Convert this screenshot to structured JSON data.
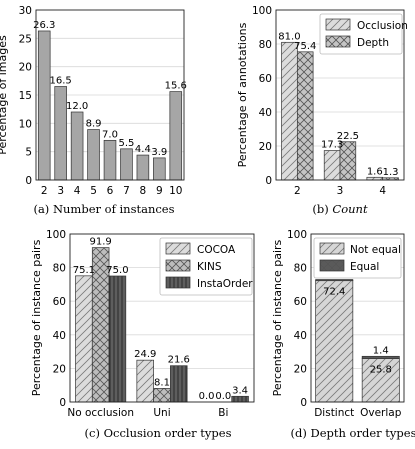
{
  "chart_data": [
    {
      "type": "bar",
      "caption": "(a) Number of instances",
      "ylabel": "Percentage of images",
      "categories": [
        "2",
        "3",
        "4",
        "5",
        "6",
        "7",
        "8",
        "9",
        "10"
      ],
      "values": [
        26.3,
        16.5,
        12.0,
        8.9,
        7.0,
        5.5,
        4.4,
        3.9,
        15.6
      ],
      "value_labels": [
        "26.3",
        "16.5",
        "12.0",
        "8.9",
        "7.0",
        "5.5",
        "4.4",
        "3.9",
        "15.6"
      ],
      "ylim": [
        0,
        30
      ],
      "yticks": [
        "0",
        "5",
        "10",
        "15",
        "20",
        "25",
        "30"
      ],
      "grid": true,
      "colors": {
        "bar": "#a6a6a6"
      }
    },
    {
      "type": "bar",
      "caption_prefix": "(b) ",
      "caption_em": "Count",
      "ylabel": "Percentage of annotations",
      "categories": [
        "2",
        "3",
        "4"
      ],
      "series": [
        {
          "name": "Occlusion",
          "values": [
            81.0,
            17.3,
            1.6
          ],
          "labels": [
            "81.0",
            "17.3",
            "1.6"
          ]
        },
        {
          "name": "Depth",
          "values": [
            75.4,
            22.5,
            1.3
          ],
          "labels": [
            "75.4",
            "22.5",
            "1.3"
          ]
        }
      ],
      "ylim": [
        0,
        100
      ],
      "yticks": [
        "0",
        "20",
        "40",
        "60",
        "80",
        "100"
      ],
      "grid": true,
      "legend": "top-right",
      "colors": {
        "occlusion": "#dcdcdc",
        "depth": "#c4c4c4"
      }
    },
    {
      "type": "bar",
      "caption": "(c) Occlusion order types",
      "ylabel": "Percentage of instance pairs",
      "categories": [
        "No occlusion",
        "Uni",
        "Bi"
      ],
      "series": [
        {
          "name": "COCOA",
          "values": [
            75.1,
            24.9,
            0.0
          ],
          "labels": [
            "75.1",
            "24.9",
            "0.0"
          ]
        },
        {
          "name": "KINS",
          "values": [
            91.9,
            8.1,
            0.0
          ],
          "labels": [
            "91.9",
            "8.1",
            "0.0"
          ]
        },
        {
          "name": "InstaOrder",
          "values": [
            75.0,
            21.6,
            3.4
          ],
          "labels": [
            "75.0",
            "21.6",
            "3.4"
          ]
        }
      ],
      "ylim": [
        0,
        100
      ],
      "yticks": [
        "0",
        "20",
        "40",
        "60",
        "80",
        "100"
      ],
      "grid": true,
      "legend": "top-right",
      "colors": {
        "cocoa": "#dcdcdc",
        "kins": "#bdbdbd",
        "instaorder": "#5e5e5e"
      }
    },
    {
      "type": "bar",
      "stacked": true,
      "caption": "(d) Depth order types",
      "ylabel": "Percentage of instance pairs",
      "categories": [
        "Distinct",
        "Overlap"
      ],
      "series": [
        {
          "name": "Not equal",
          "values": [
            72.4,
            25.8
          ],
          "labels": [
            "72.4",
            "25.8"
          ]
        },
        {
          "name": "Equal",
          "values": [
            0.5,
            1.4
          ],
          "labels": [
            "0.5",
            "1.4"
          ]
        }
      ],
      "ylim": [
        0,
        100
      ],
      "yticks": [
        "0",
        "20",
        "40",
        "60",
        "80",
        "100"
      ],
      "grid": true,
      "legend": "top",
      "colors": {
        "not_equal": "#d6d6d6",
        "equal": "#5a5a5a"
      }
    }
  ]
}
